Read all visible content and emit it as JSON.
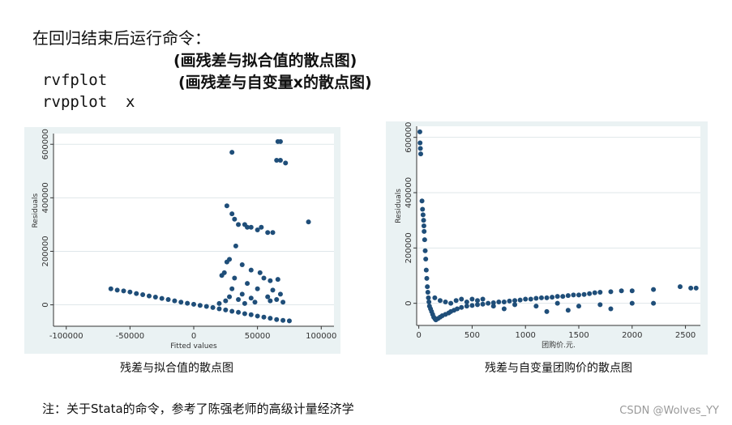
{
  "slide": {
    "heading": "在回归结束后运行命令：",
    "commands": [
      {
        "code": "rvfplot",
        "desc": "(画残差与拟合值的散点图)"
      },
      {
        "code": "rvpplot  x",
        "desc": "(画残差与自变量x的散点图)"
      }
    ],
    "captions": [
      "残差与拟合值的散点图",
      "残差与自变量团购价的散点图"
    ],
    "note": "注：关于Stata的命令，参考了陈强老师的高级计量经济学",
    "watermark": "CSDN @Wolves_YY"
  },
  "colors": {
    "panel_bg": "#eaf2f3",
    "point": "#1f4e79",
    "grid": "#dfe7ea",
    "plot_bg": "#ffffff"
  },
  "chart_data": [
    {
      "type": "scatter",
      "title": "",
      "xlabel": "Fitted values",
      "ylabel": "Residuals",
      "xlim": [
        -110000,
        110000
      ],
      "ylim": [
        -80000,
        640000
      ],
      "xticks": [
        -100000,
        -50000,
        0,
        50000,
        100000
      ],
      "yticks": [
        0,
        200000,
        400000,
        600000
      ],
      "points": [
        [
          -65000,
          60000
        ],
        [
          -60000,
          55000
        ],
        [
          -55000,
          52000
        ],
        [
          -50000,
          48000
        ],
        [
          -45000,
          42000
        ],
        [
          -40000,
          38000
        ],
        [
          -35000,
          33000
        ],
        [
          -30000,
          29000
        ],
        [
          -25000,
          24000
        ],
        [
          -20000,
          20000
        ],
        [
          -15000,
          15000
        ],
        [
          -10000,
          10000
        ],
        [
          -5000,
          6000
        ],
        [
          0,
          2000
        ],
        [
          5000,
          -2000
        ],
        [
          10000,
          -6000
        ],
        [
          15000,
          -10000
        ],
        [
          20000,
          -15000
        ],
        [
          25000,
          -19000
        ],
        [
          30000,
          -24000
        ],
        [
          35000,
          -28000
        ],
        [
          40000,
          -33000
        ],
        [
          45000,
          -37000
        ],
        [
          50000,
          -42000
        ],
        [
          55000,
          -46000
        ],
        [
          60000,
          -50000
        ],
        [
          65000,
          -55000
        ],
        [
          70000,
          -58000
        ],
        [
          75000,
          -60000
        ],
        [
          20000,
          5000
        ],
        [
          25000,
          15000
        ],
        [
          28000,
          30000
        ],
        [
          30000,
          60000
        ],
        [
          32000,
          100000
        ],
        [
          35000,
          20000
        ],
        [
          38000,
          40000
        ],
        [
          40000,
          5000
        ],
        [
          42000,
          80000
        ],
        [
          45000,
          25000
        ],
        [
          48000,
          10000
        ],
        [
          50000,
          60000
        ],
        [
          55000,
          100000
        ],
        [
          58000,
          30000
        ],
        [
          60000,
          15000
        ],
        [
          62000,
          55000
        ],
        [
          65000,
          20000
        ],
        [
          68000,
          40000
        ],
        [
          70000,
          10000
        ],
        [
          22000,
          110000
        ],
        [
          24000,
          120000
        ],
        [
          26000,
          160000
        ],
        [
          28000,
          170000
        ],
        [
          33000,
          220000
        ],
        [
          38000,
          150000
        ],
        [
          45000,
          130000
        ],
        [
          52000,
          120000
        ],
        [
          60000,
          90000
        ],
        [
          66000,
          95000
        ],
        [
          26000,
          370000
        ],
        [
          30000,
          340000
        ],
        [
          32000,
          320000
        ],
        [
          35000,
          300000
        ],
        [
          40000,
          300000
        ],
        [
          42000,
          290000
        ],
        [
          45000,
          290000
        ],
        [
          50000,
          280000
        ],
        [
          53000,
          290000
        ],
        [
          58000,
          270000
        ],
        [
          62000,
          270000
        ],
        [
          90000,
          310000
        ],
        [
          30000,
          570000
        ],
        [
          65000,
          540000
        ],
        [
          68000,
          540000
        ],
        [
          72000,
          530000
        ],
        [
          66000,
          610000
        ],
        [
          68000,
          610000
        ]
      ]
    },
    {
      "type": "scatter",
      "title": "",
      "xlabel": "团购价.元.",
      "ylabel": "Residuals",
      "xlim": [
        -20,
        2640
      ],
      "ylim": [
        -80000,
        640000
      ],
      "xticks": [
        0,
        500,
        1000,
        1500,
        2000,
        2500
      ],
      "yticks": [
        0,
        200000,
        400000,
        600000
      ],
      "points": [
        [
          10,
          620000
        ],
        [
          15,
          560000
        ],
        [
          18,
          540000
        ],
        [
          12,
          580000
        ],
        [
          30,
          370000
        ],
        [
          35,
          340000
        ],
        [
          40,
          320000
        ],
        [
          45,
          300000
        ],
        [
          48,
          280000
        ],
        [
          50,
          260000
        ],
        [
          55,
          230000
        ],
        [
          60,
          190000
        ],
        [
          65,
          160000
        ],
        [
          70,
          120000
        ],
        [
          75,
          90000
        ],
        [
          80,
          60000
        ],
        [
          85,
          40000
        ],
        [
          90,
          20000
        ],
        [
          95,
          5000
        ],
        [
          100,
          -10000
        ],
        [
          110,
          -20000
        ],
        [
          120,
          -30000
        ],
        [
          130,
          -40000
        ],
        [
          140,
          -50000
        ],
        [
          150,
          -55000
        ],
        [
          160,
          -60000
        ],
        [
          180,
          -55000
        ],
        [
          200,
          -50000
        ],
        [
          220,
          -45000
        ],
        [
          250,
          -40000
        ],
        [
          280,
          -35000
        ],
        [
          300,
          -30000
        ],
        [
          330,
          -25000
        ],
        [
          360,
          -20000
        ],
        [
          400,
          -15000
        ],
        [
          450,
          -10000
        ],
        [
          500,
          -8000
        ],
        [
          550,
          -5000
        ],
        [
          600,
          -3000
        ],
        [
          650,
          0
        ],
        [
          700,
          2000
        ],
        [
          750,
          5000
        ],
        [
          800,
          5000
        ],
        [
          850,
          8000
        ],
        [
          900,
          10000
        ],
        [
          950,
          12000
        ],
        [
          1000,
          15000
        ],
        [
          1050,
          15000
        ],
        [
          1100,
          18000
        ],
        [
          1150,
          20000
        ],
        [
          1200,
          20000
        ],
        [
          1250,
          22000
        ],
        [
          1300,
          25000
        ],
        [
          1350,
          25000
        ],
        [
          1400,
          28000
        ],
        [
          1450,
          30000
        ],
        [
          1500,
          30000
        ],
        [
          1550,
          32000
        ],
        [
          1600,
          35000
        ],
        [
          1650,
          38000
        ],
        [
          1700,
          40000
        ],
        [
          1800,
          42000
        ],
        [
          1900,
          45000
        ],
        [
          2000,
          45000
        ],
        [
          2200,
          50000
        ],
        [
          2450,
          60000
        ],
        [
          2550,
          55000
        ],
        [
          2600,
          55000
        ],
        [
          150,
          20000
        ],
        [
          200,
          10000
        ],
        [
          250,
          5000
        ],
        [
          300,
          0
        ],
        [
          350,
          10000
        ],
        [
          400,
          15000
        ],
        [
          450,
          5000
        ],
        [
          500,
          15000
        ],
        [
          550,
          10000
        ],
        [
          600,
          15000
        ],
        [
          700,
          -10000
        ],
        [
          800,
          -20000
        ],
        [
          900,
          -5000
        ],
        [
          1100,
          -10000
        ],
        [
          1300,
          0
        ],
        [
          1500,
          -10000
        ],
        [
          1700,
          -5000
        ],
        [
          2000,
          0
        ],
        [
          2200,
          0
        ],
        [
          1200,
          -30000
        ],
        [
          1400,
          -25000
        ],
        [
          1800,
          -20000
        ]
      ]
    }
  ]
}
